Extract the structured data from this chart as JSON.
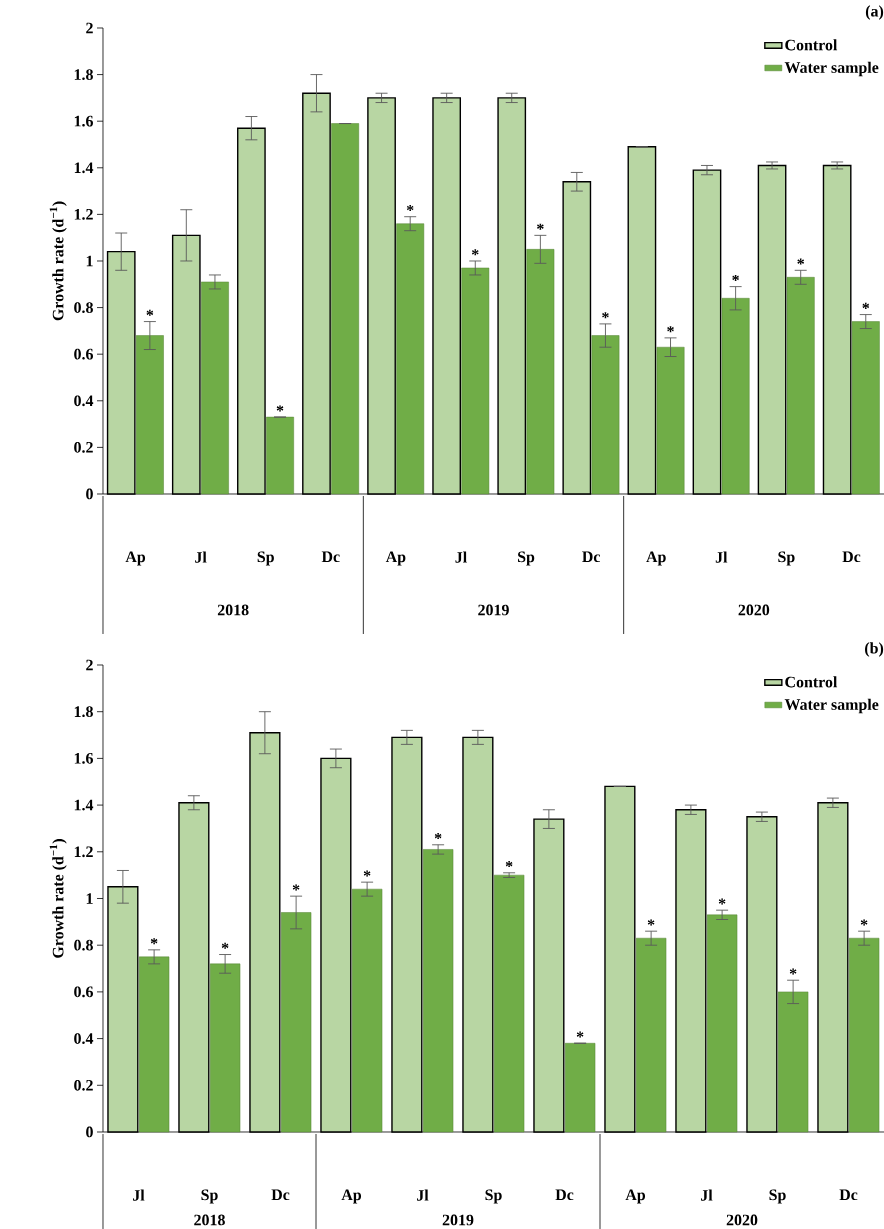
{
  "chart_data": [
    {
      "type": "bar",
      "ylabel": "Growth rate (d$^{−1}$)",
      "annotations": [
        "(a)",
        "2018",
        "2019",
        "2020"
      ],
      "categories": [
        "Ap",
        "Jl",
        "Sp",
        "Dc",
        "Ap",
        "Jl",
        "Sp",
        "Dc",
        "Ap",
        "Jl",
        "Sp",
        "Dc"
      ],
      "ylim": [
        0,
        2
      ],
      "yticks": [
        0,
        0.2,
        0.4,
        0.6,
        0.8,
        1,
        1.2,
        1.4,
        1.6,
        1.8,
        2
      ],
      "legend": "top right",
      "series": [
        {
          "name": "Control",
          "color": "#b8d6a3",
          "values": [
            1.04,
            1.11,
            1.57,
            1.72,
            1.7,
            1.7,
            1.7,
            1.34,
            1.49,
            1.39,
            1.41,
            1.41
          ],
          "errors": [
            0.08,
            0.11,
            0.05,
            0.08,
            0.02,
            0.02,
            0.02,
            0.04,
            null,
            0.02,
            0.015,
            0.015
          ]
        },
        {
          "name": "Water sample",
          "color": "#70ad47",
          "values": [
            0.68,
            0.91,
            0.33,
            1.59,
            1.16,
            0.97,
            1.05,
            0.68,
            0.63,
            0.84,
            0.93,
            0.74
          ],
          "errors": [
            0.06,
            0.03,
            null,
            null,
            0.03,
            0.03,
            0.06,
            0.05,
            0.04,
            0.05,
            0.03,
            0.03
          ],
          "value_labels": [
            "*",
            null,
            "*",
            null,
            "*",
            "*",
            "*",
            "*",
            "*",
            "*",
            "*",
            "*"
          ]
        }
      ]
    },
    {
      "type": "bar",
      "ylabel": "Growth rate (d$^{−1}$)",
      "annotations": [
        "(b)",
        "2018",
        "2019",
        "2020"
      ],
      "categories": [
        "Jl",
        "Sp",
        "Dc",
        "Ap",
        "Jl",
        "Sp",
        "Dc",
        "Ap",
        "Jl",
        "Sp",
        "Dc"
      ],
      "ylim": [
        0,
        2
      ],
      "yticks": [
        0,
        0.2,
        0.4,
        0.6,
        0.8,
        1,
        1.2,
        1.4,
        1.6,
        1.8,
        2
      ],
      "legend": "top right",
      "series": [
        {
          "name": "Control",
          "color": "#b8d6a3",
          "values": [
            1.05,
            1.41,
            1.71,
            1.6,
            1.69,
            1.69,
            1.34,
            1.48,
            1.38,
            1.35,
            1.41
          ],
          "errors": [
            0.07,
            0.03,
            0.09,
            0.04,
            0.03,
            0.03,
            0.04,
            null,
            0.02,
            0.02,
            0.02
          ]
        },
        {
          "name": "Water sample",
          "color": "#70ad47",
          "values": [
            0.75,
            0.72,
            0.94,
            1.04,
            1.21,
            1.1,
            0.38,
            0.83,
            0.93,
            0.6,
            0.83
          ],
          "errors": [
            0.03,
            0.04,
            0.07,
            0.03,
            0.02,
            0.01,
            null,
            0.03,
            0.02,
            0.05,
            0.03
          ],
          "value_labels": [
            "*",
            "*",
            "*",
            "*",
            "*",
            "*",
            "*",
            "*",
            "*",
            "*",
            "*"
          ]
        }
      ]
    }
  ]
}
